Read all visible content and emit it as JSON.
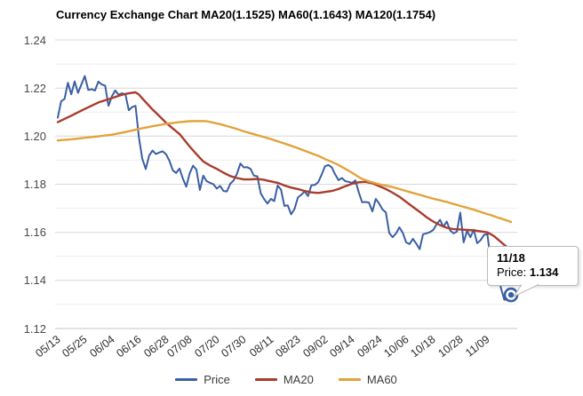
{
  "title": "Currency Exchange Chart MA20(1.1525) MA60(1.1643) MA120(1.1754)",
  "colors": {
    "price": "#3A5FA5",
    "ma20": "#A93C2E",
    "ma60": "#E2A33C",
    "grid_major": "#D8D8D8",
    "grid_minor": "#EEEEEE",
    "baseline": "#C4C4C4",
    "tooltip_border": "#BABABA"
  },
  "tooltip": {
    "date": "11/18",
    "series_label": "Price:",
    "value": "1.134"
  },
  "chart_data": {
    "type": "line",
    "title": "Currency Exchange Chart MA20(1.1525) MA60(1.1643) MA120(1.1754)",
    "ylim": [
      1.12,
      1.24
    ],
    "y_major_tick_labels": [
      "1.24",
      "1.22",
      "1.20",
      "1.18",
      "1.16",
      "1.14",
      "1.12"
    ],
    "y_major_step": 0.02,
    "y_minor_step": 0.01,
    "grid": "horizontal-only",
    "legend_position": "bottom",
    "n_points": 135,
    "x_tick_labels": [
      {
        "i": 0,
        "label": "05/13"
      },
      {
        "i": 8,
        "label": "05/25"
      },
      {
        "i": 16,
        "label": "06/04"
      },
      {
        "i": 24,
        "label": "06/16"
      },
      {
        "i": 32,
        "label": "06/28"
      },
      {
        "i": 39,
        "label": "07/08"
      },
      {
        "i": 47,
        "label": "07/20"
      },
      {
        "i": 55,
        "label": "07/30"
      },
      {
        "i": 63,
        "label": "08/11"
      },
      {
        "i": 71,
        "label": "08/23"
      },
      {
        "i": 79,
        "label": "09/02"
      },
      {
        "i": 87,
        "label": "09/14"
      },
      {
        "i": 95,
        "label": "09/24"
      },
      {
        "i": 103,
        "label": "10/06"
      },
      {
        "i": 111,
        "label": "10/18"
      },
      {
        "i": 119,
        "label": "10/28"
      },
      {
        "i": 127,
        "label": "11/09"
      }
    ],
    "series": [
      {
        "name": "Price",
        "color_key": "price",
        "width": 2,
        "points": [
          1.2077,
          1.2145,
          1.2155,
          1.2222,
          1.2174,
          1.2228,
          1.218,
          1.2215,
          1.225,
          1.2192,
          1.2195,
          1.219,
          1.2227,
          1.2215,
          1.221,
          1.2126,
          1.2166,
          1.219,
          1.2172,
          1.2178,
          1.2174,
          1.2108,
          1.2121,
          1.2126,
          1.1995,
          1.1906,
          1.1863,
          1.1919,
          1.194,
          1.1926,
          1.1932,
          1.1937,
          1.1925,
          1.1898,
          1.1858,
          1.1847,
          1.1865,
          1.1823,
          1.179,
          1.1845,
          1.1877,
          1.1861,
          1.1776,
          1.1836,
          1.1813,
          1.1806,
          1.18,
          1.1782,
          1.1793,
          1.1772,
          1.177,
          1.1802,
          1.1816,
          1.1844,
          1.1886,
          1.187,
          1.1871,
          1.1864,
          1.1836,
          1.1833,
          1.1762,
          1.1738,
          1.172,
          1.1739,
          1.173,
          1.1795,
          1.1778,
          1.171,
          1.1712,
          1.1675,
          1.1697,
          1.1745,
          1.1756,
          1.177,
          1.1751,
          1.1796,
          1.1797,
          1.1809,
          1.184,
          1.1875,
          1.188,
          1.187,
          1.1841,
          1.1817,
          1.1826,
          1.1813,
          1.181,
          1.1805,
          1.1816,
          1.1766,
          1.1725,
          1.1726,
          1.1724,
          1.1687,
          1.1739,
          1.172,
          1.1695,
          1.1683,
          1.1597,
          1.158,
          1.1595,
          1.1621,
          1.1598,
          1.1558,
          1.1551,
          1.1573,
          1.1553,
          1.153,
          1.1592,
          1.1596,
          1.1601,
          1.161,
          1.1633,
          1.1652,
          1.1623,
          1.1645,
          1.1608,
          1.1596,
          1.1603,
          1.1682,
          1.1558,
          1.1606,
          1.158,
          1.1611,
          1.1555,
          1.1567,
          1.1589,
          1.1593,
          1.1478,
          1.145,
          1.1445,
          1.1369,
          1.132,
          1.1319,
          1.134
        ]
      },
      {
        "name": "MA20",
        "color_key": "ma20",
        "width": 2.4,
        "keypoints": [
          [
            0,
            1.2058
          ],
          [
            4,
            1.2085
          ],
          [
            8,
            1.2113
          ],
          [
            12,
            1.214
          ],
          [
            16,
            1.2158
          ],
          [
            19,
            1.2172
          ],
          [
            21,
            1.2178
          ],
          [
            23,
            1.2182
          ],
          [
            24,
            1.2173
          ],
          [
            25,
            1.2157
          ],
          [
            26,
            1.2141
          ],
          [
            27,
            1.2126
          ],
          [
            28,
            1.2111
          ],
          [
            30,
            1.2084
          ],
          [
            32,
            1.2056
          ],
          [
            34,
            1.2032
          ],
          [
            36,
            1.2009
          ],
          [
            39,
            1.1957
          ],
          [
            41,
            1.1925
          ],
          [
            43,
            1.1895
          ],
          [
            45,
            1.1878
          ],
          [
            47,
            1.1864
          ],
          [
            49,
            1.1848
          ],
          [
            51,
            1.1834
          ],
          [
            53,
            1.1826
          ],
          [
            55,
            1.182
          ],
          [
            57,
            1.182
          ],
          [
            59,
            1.1822
          ],
          [
            61,
            1.1818
          ],
          [
            63,
            1.1812
          ],
          [
            65,
            1.1806
          ],
          [
            67,
            1.1795
          ],
          [
            69,
            1.1786
          ],
          [
            71,
            1.178
          ],
          [
            73,
            1.1772
          ],
          [
            75,
            1.1766
          ],
          [
            77,
            1.1764
          ],
          [
            79,
            1.1768
          ],
          [
            81,
            1.1772
          ],
          [
            83,
            1.178
          ],
          [
            85,
            1.1792
          ],
          [
            87,
            1.1802
          ],
          [
            89,
            1.1808
          ],
          [
            91,
            1.181
          ],
          [
            93,
            1.1804
          ],
          [
            95,
            1.1792
          ],
          [
            97,
            1.178
          ],
          [
            99,
            1.1765
          ],
          [
            101,
            1.1748
          ],
          [
            103,
            1.1727
          ],
          [
            105,
            1.1706
          ],
          [
            107,
            1.1685
          ],
          [
            109,
            1.1663
          ],
          [
            111,
            1.1645
          ],
          [
            113,
            1.163
          ],
          [
            115,
            1.1619
          ],
          [
            117,
            1.1613
          ],
          [
            119,
            1.1612
          ],
          [
            121,
            1.161
          ],
          [
            123,
            1.1608
          ],
          [
            125,
            1.1604
          ],
          [
            127,
            1.16
          ],
          [
            128,
            1.1592
          ],
          [
            129,
            1.1584
          ],
          [
            130,
            1.1572
          ],
          [
            131,
            1.156
          ],
          [
            132,
            1.1548
          ],
          [
            133,
            1.1537
          ],
          [
            134,
            1.1525
          ]
        ]
      },
      {
        "name": "MA60",
        "color_key": "ma60",
        "width": 2.4,
        "keypoints": [
          [
            0,
            1.1982
          ],
          [
            4,
            1.1987
          ],
          [
            8,
            1.1993
          ],
          [
            12,
            1.1999
          ],
          [
            16,
            1.2006
          ],
          [
            20,
            1.2017
          ],
          [
            24,
            1.203
          ],
          [
            28,
            1.2041
          ],
          [
            32,
            1.2051
          ],
          [
            36,
            1.2058
          ],
          [
            39,
            1.2062
          ],
          [
            42,
            1.2063
          ],
          [
            44,
            1.2062
          ],
          [
            46,
            1.2056
          ],
          [
            48,
            1.205
          ],
          [
            50,
            1.2042
          ],
          [
            52,
            1.2034
          ],
          [
            55,
            1.202
          ],
          [
            58,
            1.2008
          ],
          [
            61,
            1.1996
          ],
          [
            63,
            1.1988
          ],
          [
            66,
            1.1974
          ],
          [
            69,
            1.196
          ],
          [
            71,
            1.195
          ],
          [
            74,
            1.1934
          ],
          [
            77,
            1.1918
          ],
          [
            79,
            1.1905
          ],
          [
            81,
            1.1893
          ],
          [
            83,
            1.188
          ],
          [
            85,
            1.1864
          ],
          [
            87,
            1.1848
          ],
          [
            89,
            1.183
          ],
          [
            90,
            1.1822
          ],
          [
            92,
            1.1812
          ],
          [
            95,
            1.18
          ],
          [
            97,
            1.1794
          ],
          [
            99,
            1.1788
          ],
          [
            101,
            1.178
          ],
          [
            103,
            1.1772
          ],
          [
            105,
            1.1764
          ],
          [
            107,
            1.1756
          ],
          [
            109,
            1.1748
          ],
          [
            111,
            1.174
          ],
          [
            113,
            1.1733
          ],
          [
            115,
            1.1726
          ],
          [
            117,
            1.1718
          ],
          [
            119,
            1.171
          ],
          [
            121,
            1.1702
          ],
          [
            123,
            1.1694
          ],
          [
            125,
            1.1685
          ],
          [
            127,
            1.1676
          ],
          [
            128,
            1.1672
          ],
          [
            130,
            1.1662
          ],
          [
            132,
            1.1653
          ],
          [
            134,
            1.1643
          ]
        ]
      }
    ],
    "highlight": {
      "i": 134,
      "date": "11/18",
      "series": "Price",
      "value": 1.134
    }
  },
  "legend": {
    "items": [
      {
        "label": "Price"
      },
      {
        "label": "MA20"
      },
      {
        "label": "MA60"
      }
    ]
  }
}
